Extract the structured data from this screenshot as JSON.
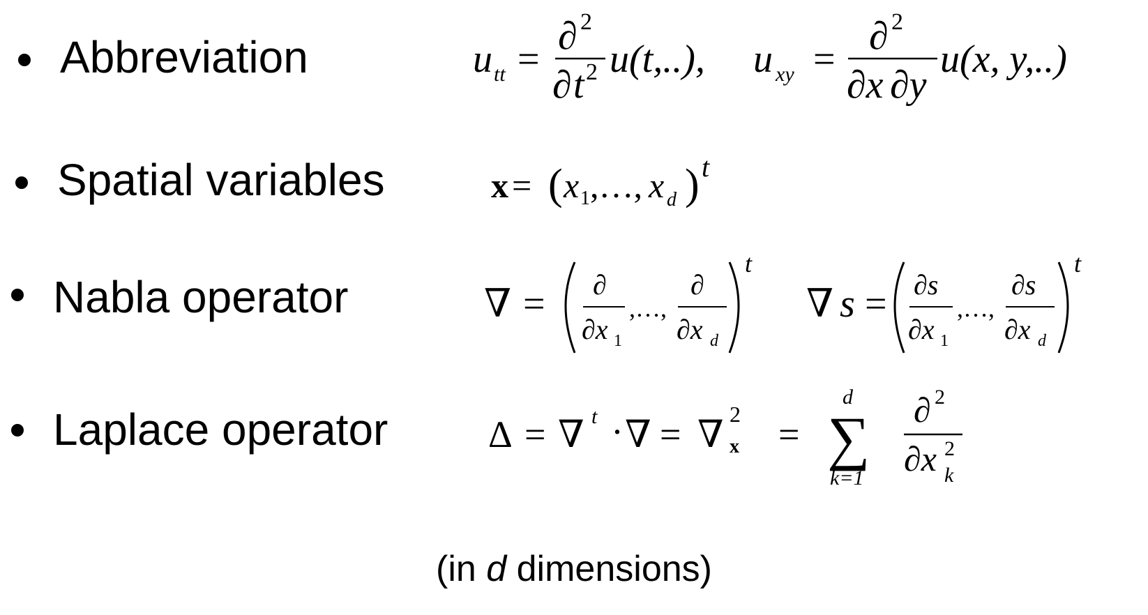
{
  "bullets": [
    {
      "label": "Abbreviation",
      "formula": "u_tt = ∂²/∂t² u(t,..),   u_xy = ∂²/(∂x ∂y) u(x, y,..)",
      "glyphs": {
        "u": "u",
        "tt": "tt",
        "eq": "=",
        "d": "∂",
        "two": "2",
        "t": "t",
        "paren_t": "u(t,..),",
        "xy": "xy",
        "dx": "∂x",
        "dy": "∂y",
        "paren_xy": "u(x, y,..)"
      }
    },
    {
      "label": "Spatial variables",
      "formula": "x = (x_1,…, x_d)^t",
      "glyphs": {
        "x": "x",
        "eq": "=",
        "lparen": "(",
        "x1": "x",
        "one": "1",
        "dots": ",…,",
        "xd": "x",
        "d": "d",
        "rparen": ")",
        "t": "t"
      }
    },
    {
      "label": "Nabla operator",
      "formula": "∇ = (∂/∂x_1,…,∂/∂x_d)^t     ∇s = (∂s/∂x_1,…,∂s/∂x_d)^t",
      "glyphs": {
        "nabla": "∇",
        "eq": "=",
        "d": "∂",
        "dx": "∂x",
        "one": "1",
        "sub_d": "d",
        "dots": ",…,",
        "t": "t",
        "s": "s",
        "ds": "∂s"
      }
    },
    {
      "label": "Laplace operator",
      "formula": "Δ = ∇^t · ∇ = ∇_x^2 = Σ_{k=1}^{d} ∂²/∂x_k²",
      "glyphs": {
        "delta": "Δ",
        "eq": "=",
        "nabla": "∇",
        "t": "t",
        "dot": "·",
        "x": "x",
        "two": "2",
        "sigma": "∑",
        "k1": "k=1",
        "d": "d",
        "partial": "∂",
        "dx": "∂x",
        "k": "k"
      }
    }
  ],
  "footnote": {
    "before": "(in ",
    "italic": "d",
    "after": " dimensions)"
  }
}
